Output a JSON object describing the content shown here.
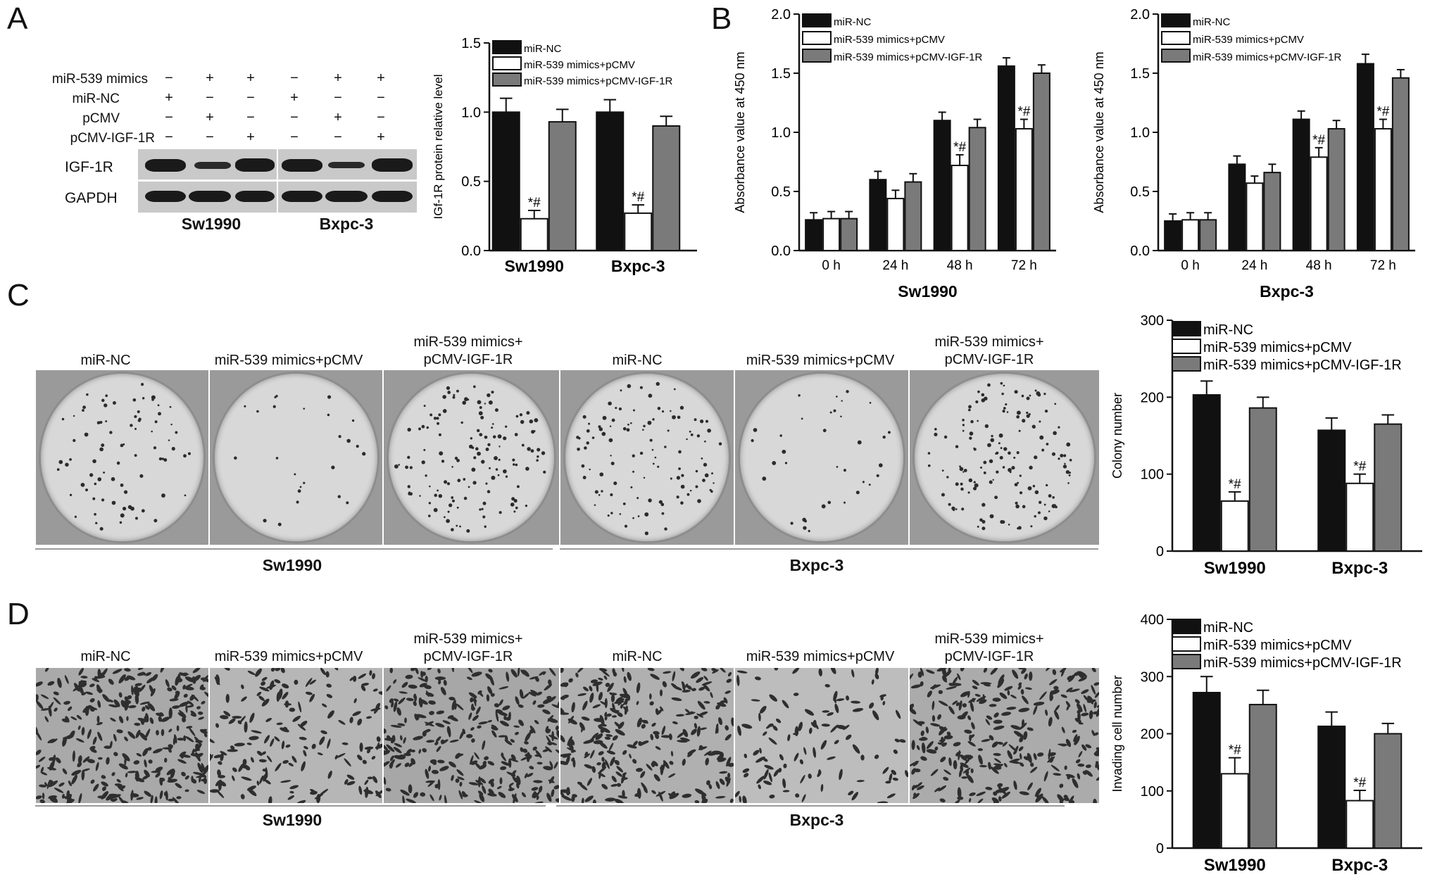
{
  "panels": {
    "A": {
      "letter": "A",
      "row_labels": [
        "miR-539 mimics",
        "miR-NC",
        "pCMV",
        "pCMV-IGF-1R"
      ],
      "matrix": [
        [
          "−",
          "+",
          "+",
          "−",
          "+",
          "+"
        ],
        [
          "+",
          "−",
          "−",
          "+",
          "−",
          "−"
        ],
        [
          "−",
          "+",
          "−",
          "−",
          "+",
          "−"
        ],
        [
          "−",
          "−",
          "+",
          "−",
          "−",
          "+"
        ]
      ],
      "blot_labels": [
        "IGF-1R",
        "GAPDH"
      ],
      "cell_lines": [
        "Sw1990",
        "Bxpc-3"
      ]
    },
    "B": {
      "letter": "B"
    },
    "C": {
      "letter": "C",
      "image_labels": [
        "miR-NC",
        "miR-539 mimics+pCMV",
        "miR-539 mimics+\npCMV-IGF-1R",
        "miR-NC",
        "miR-539 mimics+pCMV",
        "miR-539 mimics+\npCMV-IGF-1R"
      ],
      "cell_lines": [
        "Sw1990",
        "Bxpc-3"
      ]
    },
    "D": {
      "letter": "D",
      "image_labels": [
        "miR-NC",
        "miR-539 mimics+pCMV",
        "miR-539 mimics+\npCMV-IGF-1R",
        "miR-NC",
        "miR-539 mimics+pCMV",
        "miR-539 mimics+\npCMV-IGF-1R"
      ],
      "cell_lines": [
        "Sw1990",
        "Bxpc-3"
      ]
    }
  },
  "colors": {
    "miR-NC": "#111111",
    "pCMV": "#ffffff",
    "IGF1R": "#7a7a7a"
  },
  "chart_data": [
    {
      "id": "A-bar",
      "type": "bar",
      "ylabel": "IGf-1R protein relative level",
      "xlabel": "",
      "ylim": [
        0,
        1.5
      ],
      "yticks": [
        "0.0",
        "0.5",
        "1.0",
        "1.5"
      ],
      "categories": [
        "Sw1990",
        "Bxpc-3"
      ],
      "series": [
        {
          "name": "miR-NC",
          "values": [
            1.0,
            1.0
          ],
          "errors": [
            0.1,
            0.09
          ]
        },
        {
          "name": "miR-539 mimics+pCMV",
          "values": [
            0.23,
            0.27
          ],
          "errors": [
            0.06,
            0.06
          ]
        },
        {
          "name": "miR-539 mimics+pCMV-IGF-1R",
          "values": [
            0.93,
            0.9
          ],
          "errors": [
            0.09,
            0.07
          ]
        }
      ],
      "annotations": [
        "*#",
        "*#"
      ],
      "legend": "top"
    },
    {
      "id": "B-Sw1990",
      "type": "bar",
      "ylabel": "Absorbance value at 450 nm",
      "xlabel": "Sw1990",
      "ylim": [
        0,
        2.0
      ],
      "yticks": [
        "0.0",
        "0.5",
        "1.0",
        "1.5",
        "2.0"
      ],
      "categories": [
        "0 h",
        "24 h",
        "48 h",
        "72 h"
      ],
      "series": [
        {
          "name": "miR-NC",
          "values": [
            0.26,
            0.6,
            1.1,
            1.56
          ],
          "errors": [
            0.06,
            0.07,
            0.07,
            0.07
          ]
        },
        {
          "name": "miR-539 mimics+pCMV",
          "values": [
            0.27,
            0.44,
            0.72,
            1.03
          ],
          "errors": [
            0.06,
            0.07,
            0.09,
            0.08
          ]
        },
        {
          "name": "miR-539 mimics+pCMV-IGF-1R",
          "values": [
            0.27,
            0.58,
            1.04,
            1.5
          ],
          "errors": [
            0.06,
            0.07,
            0.07,
            0.07
          ]
        }
      ],
      "annotations": [
        "*#",
        "*#"
      ],
      "legend": "top-left"
    },
    {
      "id": "B-Bxpc-3",
      "type": "bar",
      "ylabel": "Absorbance value at 450 nm",
      "xlabel": "Bxpc-3",
      "ylim": [
        0,
        2.0
      ],
      "yticks": [
        "0.0",
        "0.5",
        "1.0",
        "1.5",
        "2.0"
      ],
      "categories": [
        "0 h",
        "24 h",
        "48 h",
        "72 h"
      ],
      "series": [
        {
          "name": "miR-NC",
          "values": [
            0.25,
            0.73,
            1.11,
            1.58
          ],
          "errors": [
            0.06,
            0.07,
            0.07,
            0.08
          ]
        },
        {
          "name": "miR-539 mimics+pCMV",
          "values": [
            0.26,
            0.57,
            0.79,
            1.03
          ],
          "errors": [
            0.06,
            0.06,
            0.08,
            0.08
          ]
        },
        {
          "name": "miR-539 mimics+pCMV-IGF-1R",
          "values": [
            0.26,
            0.66,
            1.03,
            1.46
          ],
          "errors": [
            0.06,
            0.07,
            0.07,
            0.07
          ]
        }
      ],
      "annotations": [
        "*#",
        "*#"
      ],
      "legend": "top-left"
    },
    {
      "id": "C-bar",
      "type": "bar",
      "ylabel": "Colony number",
      "xlabel": "",
      "ylim": [
        0,
        300
      ],
      "yticks": [
        "0",
        "100",
        "200",
        "300"
      ],
      "categories": [
        "Sw1990",
        "Bxpc-3"
      ],
      "series": [
        {
          "name": "miR-NC",
          "values": [
            203,
            157
          ],
          "errors": [
            18,
            16
          ]
        },
        {
          "name": "miR-539 mimics+pCMV",
          "values": [
            65,
            88
          ],
          "errors": [
            12,
            12
          ]
        },
        {
          "name": "miR-539 mimics+pCMV-IGF-1R",
          "values": [
            186,
            165
          ],
          "errors": [
            14,
            12
          ]
        }
      ],
      "annotations": [
        "*#",
        "*#"
      ],
      "legend": "top"
    },
    {
      "id": "D-bar",
      "type": "bar",
      "ylabel": "Invading cell number",
      "xlabel": "",
      "ylim": [
        0,
        400
      ],
      "yticks": [
        "0",
        "100",
        "200",
        "300",
        "400"
      ],
      "categories": [
        "Sw1990",
        "Bxpc-3"
      ],
      "series": [
        {
          "name": "miR-NC",
          "values": [
            272,
            213
          ],
          "errors": [
            28,
            25
          ]
        },
        {
          "name": "miR-539 mimics+pCMV",
          "values": [
            130,
            83
          ],
          "errors": [
            28,
            18
          ]
        },
        {
          "name": "miR-539 mimics+pCMV-IGF-1R",
          "values": [
            251,
            200
          ],
          "errors": [
            25,
            18
          ]
        }
      ],
      "annotations": [
        "*#",
        "*#"
      ],
      "legend": "top"
    }
  ]
}
